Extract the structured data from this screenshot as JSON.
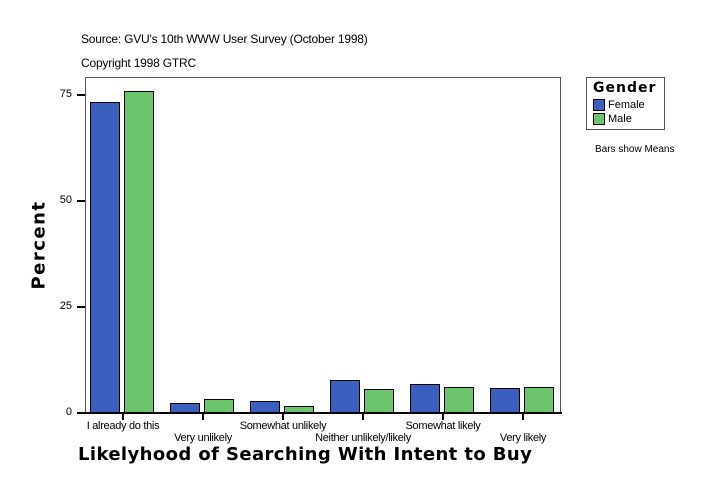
{
  "header": {
    "source": "Source: GVU's 10th WWW User Survey (October 1998)",
    "copyright": "Copyright 1998 GTRC"
  },
  "legend": {
    "title": "Gender",
    "items": [
      {
        "label": "Female",
        "color": "#3a5fbf"
      },
      {
        "label": "Male",
        "color": "#6cc46c"
      }
    ],
    "note": "Bars show Means"
  },
  "axes": {
    "ylabel": "Percent",
    "xlabel": "Likelyhood of Searching With Intent to Buy",
    "yticks": [
      "0",
      "25",
      "50",
      "75"
    ]
  },
  "chart_data": {
    "type": "bar",
    "title": "Source: GVU's 10th WWW User Survey (October 1998)",
    "subtitle": "Copyright 1998 GTRC",
    "xlabel": "Likelyhood of Searching With Intent to Buy",
    "ylabel": "Percent",
    "ylim": [
      0,
      75
    ],
    "yticks": [
      0,
      25,
      50,
      75
    ],
    "grid": false,
    "legend_position": "right",
    "legend_title": "Gender",
    "annotations": [
      "Bars show Means"
    ],
    "categories": [
      "I already do this",
      "Very unlikely",
      "Somewhat unlikely",
      "Neither unlikely/likely",
      "Somewhat likely",
      "Very likely"
    ],
    "series": [
      {
        "name": "Female",
        "color": "#3a5fbf",
        "values": [
          73.3,
          2.4,
          2.8,
          7.7,
          6.8,
          5.8
        ]
      },
      {
        "name": "Male",
        "color": "#6cc46c",
        "values": [
          75.9,
          3.3,
          1.6,
          5.6,
          6.1,
          6.1
        ]
      }
    ]
  }
}
